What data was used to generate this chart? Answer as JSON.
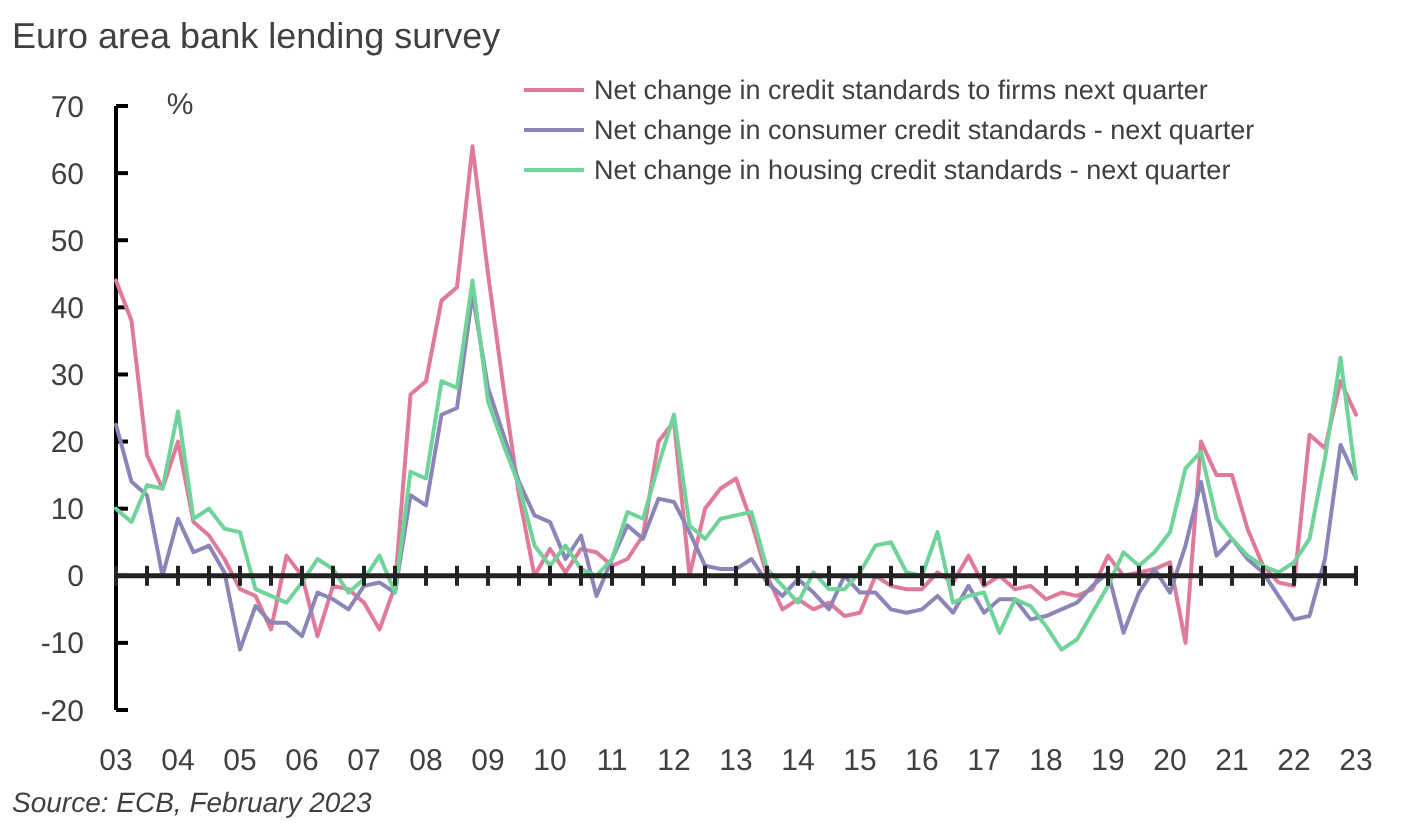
{
  "chart_data": {
    "type": "line",
    "title": "Euro area bank lending survey",
    "ylabel": "%",
    "annotations": [
      "Source: ECB, February 2023"
    ],
    "x": [
      2003,
      2003.25,
      2003.5,
      2003.75,
      2004,
      2004.25,
      2004.5,
      2004.75,
      2005,
      2005.25,
      2005.5,
      2005.75,
      2006,
      2006.25,
      2006.5,
      2006.75,
      2007,
      2007.25,
      2007.5,
      2007.75,
      2008,
      2008.25,
      2008.5,
      2008.75,
      2009,
      2009.25,
      2009.5,
      2009.75,
      2010,
      2010.25,
      2010.5,
      2010.75,
      2011,
      2011.25,
      2011.5,
      2011.75,
      2012,
      2012.25,
      2012.5,
      2012.75,
      2013,
      2013.25,
      2013.5,
      2013.75,
      2014,
      2014.25,
      2014.5,
      2014.75,
      2015,
      2015.25,
      2015.5,
      2015.75,
      2016,
      2016.25,
      2016.5,
      2016.75,
      2017,
      2017.25,
      2017.5,
      2017.75,
      2018,
      2018.25,
      2018.5,
      2018.75,
      2019,
      2019.25,
      2019.5,
      2019.75,
      2020,
      2020.25,
      2020.5,
      2020.75,
      2021,
      2021.25,
      2021.5,
      2021.75,
      2022,
      2022.25,
      2022.5,
      2022.75,
      2023
    ],
    "series": [
      {
        "name": "Net change in credit standards to firms next quarter",
        "color": "#e07a9a",
        "values": [
          44,
          38,
          18,
          13,
          20,
          8,
          6,
          2.5,
          -2,
          -3,
          -8,
          3,
          0,
          -9,
          -1.5,
          -2,
          -4,
          -8,
          -1.5,
          27,
          29,
          41,
          43,
          64,
          45,
          28,
          12,
          0,
          4,
          0.5,
          4,
          3.5,
          1.5,
          2.5,
          6,
          20,
          23,
          0,
          10,
          13,
          14.5,
          8,
          0,
          -5,
          -3.5,
          -5,
          -4,
          -6,
          -5.5,
          0,
          -1.5,
          -2,
          -2,
          0.5,
          -1,
          3,
          -1.5,
          0,
          -2,
          -1.5,
          -3.5,
          -2.5,
          -3,
          -2,
          3,
          0,
          0.5,
          1,
          2,
          -10,
          20,
          15,
          15,
          7,
          1.5,
          -1,
          -1.5,
          21,
          19,
          29,
          24
        ]
      },
      {
        "name": "Net change in consumer credit standards - next quarter",
        "color": "#8a86b8",
        "values": [
          22.5,
          14,
          12,
          0,
          8.5,
          3.5,
          4.5,
          0.5,
          -11,
          -4.5,
          -7,
          -7,
          -9,
          -2.5,
          -3.5,
          -5,
          -1.5,
          -1,
          -2.5,
          12,
          10.5,
          24,
          25,
          42,
          28,
          21,
          14,
          9,
          8,
          2.5,
          6,
          -3,
          2.5,
          7.5,
          5.5,
          11.5,
          11,
          6.5,
          1.5,
          1,
          1,
          2.5,
          -1,
          -3,
          -0.5,
          -2.5,
          -5,
          0,
          -2.5,
          -2.5,
          -5,
          -5.5,
          -5,
          -3,
          -5.5,
          -1.5,
          -5.5,
          -3.5,
          -3.5,
          -6.5,
          -6,
          -5,
          -4,
          -1.5,
          0.5,
          -8.5,
          -2.5,
          1,
          -2.5,
          4.5,
          14,
          3,
          5.5,
          2.5,
          0.5,
          -3,
          -6.5,
          -6,
          2.5,
          19.5,
          14.5
        ]
      },
      {
        "name": "Net change in housing credit standards - next quarter",
        "color": "#6fd39a",
        "values": [
          10,
          8,
          13.5,
          13,
          24.5,
          8.5,
          10,
          7,
          6.5,
          -2,
          -3,
          -4,
          -1,
          2.5,
          1,
          -2.5,
          -0.5,
          3,
          -2.5,
          15.5,
          14.5,
          29,
          28,
          44,
          26,
          19.5,
          13.5,
          4.5,
          1.5,
          4.5,
          1,
          0,
          2.5,
          9.5,
          8.5,
          16.5,
          24,
          7.5,
          5.5,
          8.5,
          9,
          9.5,
          1,
          -1.5,
          -4,
          0.5,
          -2,
          -2,
          0.5,
          4.5,
          5,
          0.5,
          0,
          6.5,
          -4,
          -3,
          -2.5,
          -8.5,
          -3.5,
          -4.5,
          -7.5,
          -11,
          -9.5,
          -5.5,
          -1.5,
          3.5,
          1.5,
          3.5,
          6.5,
          16,
          18.5,
          8.5,
          5.5,
          3,
          1.5,
          0.5,
          2,
          5.5,
          17.5,
          32.5,
          14.5
        ]
      }
    ],
    "xlim": [
      2003,
      2023
    ],
    "xticks": [
      {
        "value": 2003,
        "label": "03"
      },
      {
        "value": 2003.5,
        "label": null
      },
      {
        "value": 2004,
        "label": "04"
      },
      {
        "value": 2004.5,
        "label": null
      },
      {
        "value": 2005,
        "label": "05"
      },
      {
        "value": 2005.5,
        "label": null
      },
      {
        "value": 2006,
        "label": "06"
      },
      {
        "value": 2006.5,
        "label": null
      },
      {
        "value": 2007,
        "label": "07"
      },
      {
        "value": 2007.5,
        "label": null
      },
      {
        "value": 2008,
        "label": "08"
      },
      {
        "value": 2008.5,
        "label": null
      },
      {
        "value": 2009,
        "label": "09"
      },
      {
        "value": 2009.5,
        "label": null
      },
      {
        "value": 2010,
        "label": "10"
      },
      {
        "value": 2010.5,
        "label": null
      },
      {
        "value": 2011,
        "label": "11"
      },
      {
        "value": 2011.5,
        "label": null
      },
      {
        "value": 2012,
        "label": "12"
      },
      {
        "value": 2012.5,
        "label": null
      },
      {
        "value": 2013,
        "label": "13"
      },
      {
        "value": 2013.5,
        "label": null
      },
      {
        "value": 2014,
        "label": "14"
      },
      {
        "value": 2014.5,
        "label": null
      },
      {
        "value": 2015,
        "label": "15"
      },
      {
        "value": 2015.5,
        "label": null
      },
      {
        "value": 2016,
        "label": "16"
      },
      {
        "value": 2016.5,
        "label": null
      },
      {
        "value": 2017,
        "label": "17"
      },
      {
        "value": 2017.5,
        "label": null
      },
      {
        "value": 2018,
        "label": "18"
      },
      {
        "value": 2018.5,
        "label": null
      },
      {
        "value": 2019,
        "label": "19"
      },
      {
        "value": 2019.5,
        "label": null
      },
      {
        "value": 2020,
        "label": "20"
      },
      {
        "value": 2020.5,
        "label": null
      },
      {
        "value": 2021,
        "label": "21"
      },
      {
        "value": 2021.5,
        "label": null
      },
      {
        "value": 2022,
        "label": "22"
      },
      {
        "value": 2022.5,
        "label": null
      },
      {
        "value": 2023,
        "label": "23"
      }
    ],
    "ylim": [
      -20,
      70
    ],
    "yticks": [
      -20,
      -10,
      0,
      10,
      20,
      30,
      40,
      50,
      60,
      70
    ],
    "legend": "top right",
    "marker": "none",
    "line_style": "solid"
  }
}
